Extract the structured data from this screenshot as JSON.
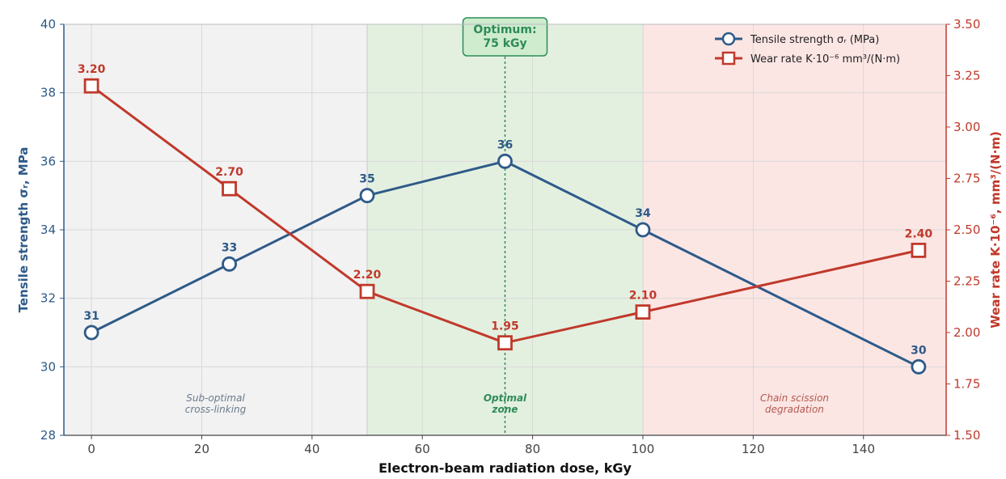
{
  "chart_data": {
    "type": "line",
    "xlabel": "Electron-beam radiation dose, kGy",
    "ylabel_left": "Tensile strength σᵣ, MPa",
    "ylabel_right": "Wear rate K·10⁻⁶, mm³/(N·m)",
    "xlim": [
      -5,
      155
    ],
    "ylim_left": [
      28,
      40
    ],
    "ylim_right": [
      1.5,
      3.5
    ],
    "x_ticks": [
      "0",
      "20",
      "40",
      "60",
      "80",
      "100",
      "120",
      "140"
    ],
    "y_left_ticks": [
      "28",
      "30",
      "32",
      "34",
      "36",
      "38",
      "40"
    ],
    "y_right_ticks": [
      "1.50",
      "1.75",
      "2.00",
      "2.25",
      "2.50",
      "2.75",
      "3.00",
      "3.25",
      "3.50"
    ],
    "grid": true,
    "legend_position": "top-right",
    "series": [
      {
        "name": "Tensile strength σᵣ (MPa)",
        "axis": "left",
        "color": "#2e5a88",
        "marker": "circle",
        "x": [
          0,
          25,
          50,
          75,
          100,
          150
        ],
        "values": [
          31,
          33,
          35,
          36,
          34,
          30
        ],
        "labels": [
          "31",
          "33",
          "35",
          "36",
          "34",
          "30"
        ]
      },
      {
        "name": "Wear rate K·10⁻⁶ mm³/(N·m)",
        "axis": "right",
        "color": "#c0392b",
        "marker": "square",
        "x": [
          0,
          25,
          50,
          75,
          100,
          150
        ],
        "values": [
          3.2,
          2.7,
          2.2,
          1.95,
          2.1,
          2.4
        ],
        "labels": [
          "3.20",
          "2.70",
          "2.20",
          "1.95",
          "2.10",
          "2.40"
        ]
      }
    ],
    "zones": [
      {
        "name": "sub-optimal",
        "x_range": [
          -5,
          50
        ],
        "color": "#f2f2f2",
        "label_lines": [
          "Sub-optimal",
          "cross-linking"
        ],
        "label_color": "#6b7b8c"
      },
      {
        "name": "optimal",
        "x_range": [
          50,
          100
        ],
        "color": "#e3f0e0",
        "label_lines": [
          "Optimal",
          "zone"
        ],
        "label_color": "#2e8b57"
      },
      {
        "name": "degradation",
        "x_range": [
          100,
          155
        ],
        "color": "#fbe6e4",
        "label_lines": [
          "Chain scission",
          "degradation"
        ],
        "label_color": "#b5584e"
      }
    ],
    "optimum": {
      "x": 75,
      "label_lines": [
        "Optimum:",
        "75 kGy"
      ],
      "color": "#2e8b57",
      "fill": "#cfeccf"
    }
  }
}
